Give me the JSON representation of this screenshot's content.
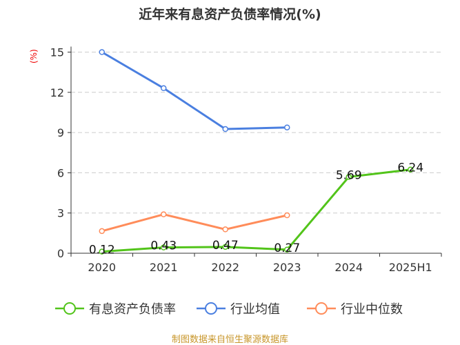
{
  "chart_data": {
    "type": "line",
    "title": "近年来有息资产负债率情况(%)",
    "ylabel": "(%)",
    "categories": [
      "2020",
      "2021",
      "2022",
      "2023",
      "2024",
      "2025H1"
    ],
    "ylim": [
      0,
      15
    ],
    "yticks": [
      "0",
      "3",
      "6",
      "9",
      "12",
      "15"
    ],
    "grid": true,
    "legend_position": "bottom",
    "series": [
      {
        "name": "有息资产负债率",
        "color": "#52c41a",
        "values": [
          0.12,
          0.43,
          0.47,
          0.27,
          5.69,
          6.24
        ],
        "labels": [
          "0.12",
          "0.43",
          "0.47",
          "0.27",
          "5.69",
          "6.24"
        ]
      },
      {
        "name": "行业均值",
        "color": "#4a7fe0",
        "values": [
          15.0,
          12.31,
          9.26,
          9.38,
          null,
          null
        ]
      },
      {
        "name": "行业中位数",
        "color": "#ff8c5a",
        "values": [
          1.65,
          2.9,
          1.78,
          2.83,
          null,
          null
        ]
      }
    ]
  },
  "source": "制图数据来自恒生聚源数据库"
}
